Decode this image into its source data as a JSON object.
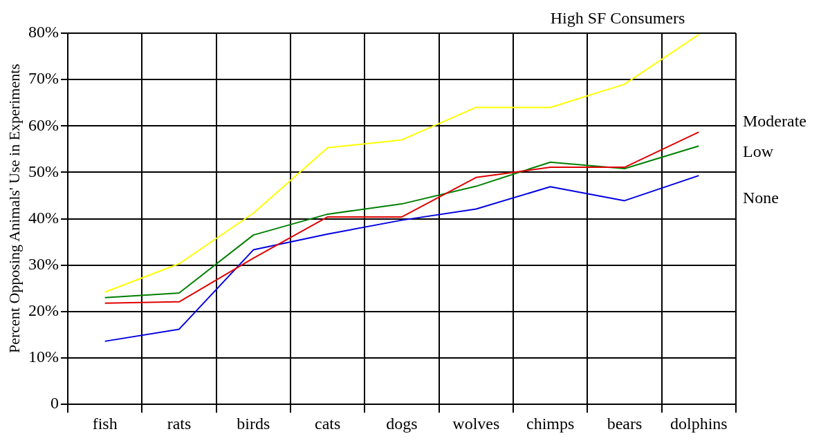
{
  "chart_data": {
    "type": "line",
    "ylabel": "Percent Opposing Animals' Use in Experiments",
    "categories": [
      "fish",
      "rats",
      "birds",
      "cats",
      "dogs",
      "wolves",
      "chimps",
      "bears",
      "dolphins"
    ],
    "ylim": [
      0,
      80
    ],
    "yticks": [
      {
        "value": 0,
        "label": "0"
      },
      {
        "value": 10,
        "label": "10%"
      },
      {
        "value": 20,
        "label": "20%"
      },
      {
        "value": 30,
        "label": "30%"
      },
      {
        "value": 40,
        "label": "40%"
      },
      {
        "value": 50,
        "label": "50%"
      },
      {
        "value": 60,
        "label": "60%"
      },
      {
        "value": 70,
        "label": "70%"
      },
      {
        "value": 80,
        "label": "80%"
      }
    ],
    "grid": true,
    "legend": false,
    "marker": "none",
    "line_style": "solid",
    "series": [
      {
        "name": "High SF Consumers",
        "color": "#ffff00",
        "values": [
          24.2,
          30.3,
          41.2,
          55.3,
          57,
          64,
          64,
          69,
          79.7
        ]
      },
      {
        "name": "Moderate",
        "color": "#e00000",
        "values": [
          21.8,
          22.1,
          31.5,
          40.4,
          40.4,
          48.9,
          51.1,
          51.1,
          58.7
        ]
      },
      {
        "name": "Low",
        "color": "#007f00",
        "values": [
          23,
          24,
          36.5,
          41,
          43.2,
          47,
          52.2,
          50.8,
          55.7
        ]
      },
      {
        "name": "None",
        "color": "#0000e0",
        "values": [
          13.6,
          16.2,
          33.3,
          36.7,
          39.7,
          42.1,
          46.9,
          43.9,
          49.3
        ]
      }
    ]
  }
}
